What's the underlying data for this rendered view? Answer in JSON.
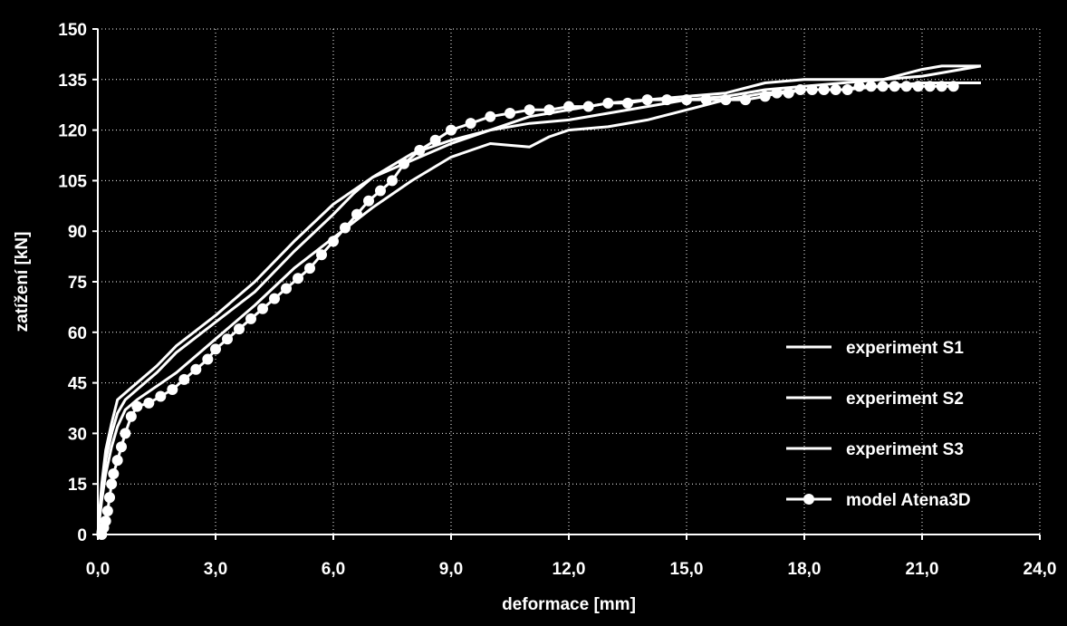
{
  "chart_data": {
    "type": "line",
    "xlabel": "deformace  [mm]",
    "ylabel": "zatížení  [kN]",
    "xlim": [
      0,
      24
    ],
    "ylim": [
      0,
      150
    ],
    "x_ticks": [
      0,
      3,
      6,
      9,
      12,
      15,
      18,
      21,
      24
    ],
    "y_ticks": [
      0,
      15,
      30,
      45,
      60,
      75,
      90,
      105,
      120,
      135,
      150
    ],
    "x_tick_labels": [
      "0,0",
      "3,0",
      "6,0",
      "9,0",
      "12,0",
      "15,0",
      "18,0",
      "21,0",
      "24,0"
    ],
    "y_tick_labels": [
      "0",
      "15",
      "30",
      "45",
      "60",
      "75",
      "90",
      "105",
      "120",
      "135",
      "150"
    ],
    "grid": true,
    "legend_position": "bottom-right",
    "colors": {
      "background": "#000000",
      "foreground": "#ffffff"
    },
    "series": [
      {
        "name": "experiment S1",
        "marker": "none",
        "x": [
          0,
          0.1,
          0.2,
          0.35,
          0.5,
          0.7,
          1.0,
          1.5,
          2.0,
          3.0,
          4.0,
          5.0,
          6.0,
          6.5,
          7.0,
          8.0,
          9.0,
          10.0,
          11.0,
          12.0,
          13.0,
          14.0,
          15.0,
          16.0,
          17.0,
          18.0,
          19.0,
          20.0,
          21.0,
          22.0,
          22.5
        ],
        "y": [
          0,
          12,
          22,
          30,
          36,
          40,
          43,
          48,
          54,
          63,
          72,
          84,
          95,
          101,
          106,
          113,
          117,
          120,
          122,
          123,
          125,
          127,
          129,
          130,
          132,
          133,
          134,
          135,
          136,
          138,
          139
        ]
      },
      {
        "name": "experiment S2",
        "marker": "none",
        "x": [
          0,
          0.1,
          0.2,
          0.35,
          0.5,
          0.7,
          1.0,
          1.5,
          2.0,
          3.0,
          4.0,
          5.0,
          6.0,
          7.0,
          8.0,
          9.0,
          10.0,
          11.0,
          12.0,
          13.0,
          14.0,
          15.0,
          16.0,
          17.0,
          18.0,
          19.0,
          20.0,
          21.0,
          21.5,
          22.0,
          22.5
        ],
        "y": [
          0,
          15,
          25,
          33,
          40,
          42,
          45,
          50,
          56,
          65,
          75,
          87,
          98,
          106,
          111,
          116,
          120,
          124,
          126,
          128,
          129,
          130,
          131,
          134,
          135,
          135,
          135,
          138,
          139,
          139,
          139
        ]
      },
      {
        "name": "experiment S3",
        "marker": "none",
        "x": [
          0,
          0.1,
          0.2,
          0.35,
          0.5,
          0.7,
          1.0,
          1.5,
          2.0,
          3.0,
          4.0,
          5.0,
          6.0,
          7.0,
          8.0,
          9.0,
          10.0,
          11.0,
          11.5,
          12.0,
          13.0,
          14.0,
          15.0,
          16.0,
          17.0,
          18.0,
          19.0,
          20.0,
          21.0,
          22.0,
          22.5
        ],
        "y": [
          0,
          10,
          18,
          26,
          32,
          37,
          40,
          44,
          48,
          58,
          68,
          79,
          88,
          97,
          105,
          112,
          116,
          115,
          118,
          120,
          121,
          123,
          126,
          129,
          131,
          132,
          132,
          133,
          134,
          134,
          134
        ]
      },
      {
        "name": "model Atena3D",
        "marker": "circle",
        "x": [
          0.1,
          0.15,
          0.2,
          0.25,
          0.3,
          0.35,
          0.4,
          0.5,
          0.6,
          0.7,
          0.85,
          1.0,
          1.3,
          1.6,
          1.9,
          2.2,
          2.5,
          2.8,
          3.0,
          3.3,
          3.6,
          3.9,
          4.2,
          4.5,
          4.8,
          5.1,
          5.4,
          5.7,
          6.0,
          6.3,
          6.6,
          6.9,
          7.2,
          7.5,
          7.8,
          8.2,
          8.6,
          9.0,
          9.5,
          10.0,
          10.5,
          11.0,
          11.5,
          12.0,
          12.5,
          13.0,
          13.5,
          14.0,
          14.5,
          15.0,
          15.5,
          16.0,
          16.5,
          17.0,
          17.3,
          17.6,
          17.9,
          18.2,
          18.5,
          18.8,
          19.1,
          19.4,
          19.7,
          20.0,
          20.3,
          20.6,
          20.9,
          21.2,
          21.5,
          21.8
        ],
        "y": [
          0,
          2,
          4,
          7,
          11,
          15,
          18,
          22,
          26,
          30,
          35,
          38,
          39,
          41,
          43,
          46,
          49,
          52,
          55,
          58,
          61,
          64,
          67,
          70,
          73,
          76,
          79,
          83,
          87,
          91,
          95,
          99,
          102,
          105,
          110,
          114,
          117,
          120,
          122,
          124,
          125,
          126,
          126,
          127,
          127,
          128,
          128,
          129,
          129,
          129,
          129,
          129,
          129,
          130,
          131,
          131,
          132,
          132,
          132,
          132,
          132,
          133,
          133,
          133,
          133,
          133,
          133,
          133,
          133,
          133
        ]
      }
    ]
  }
}
